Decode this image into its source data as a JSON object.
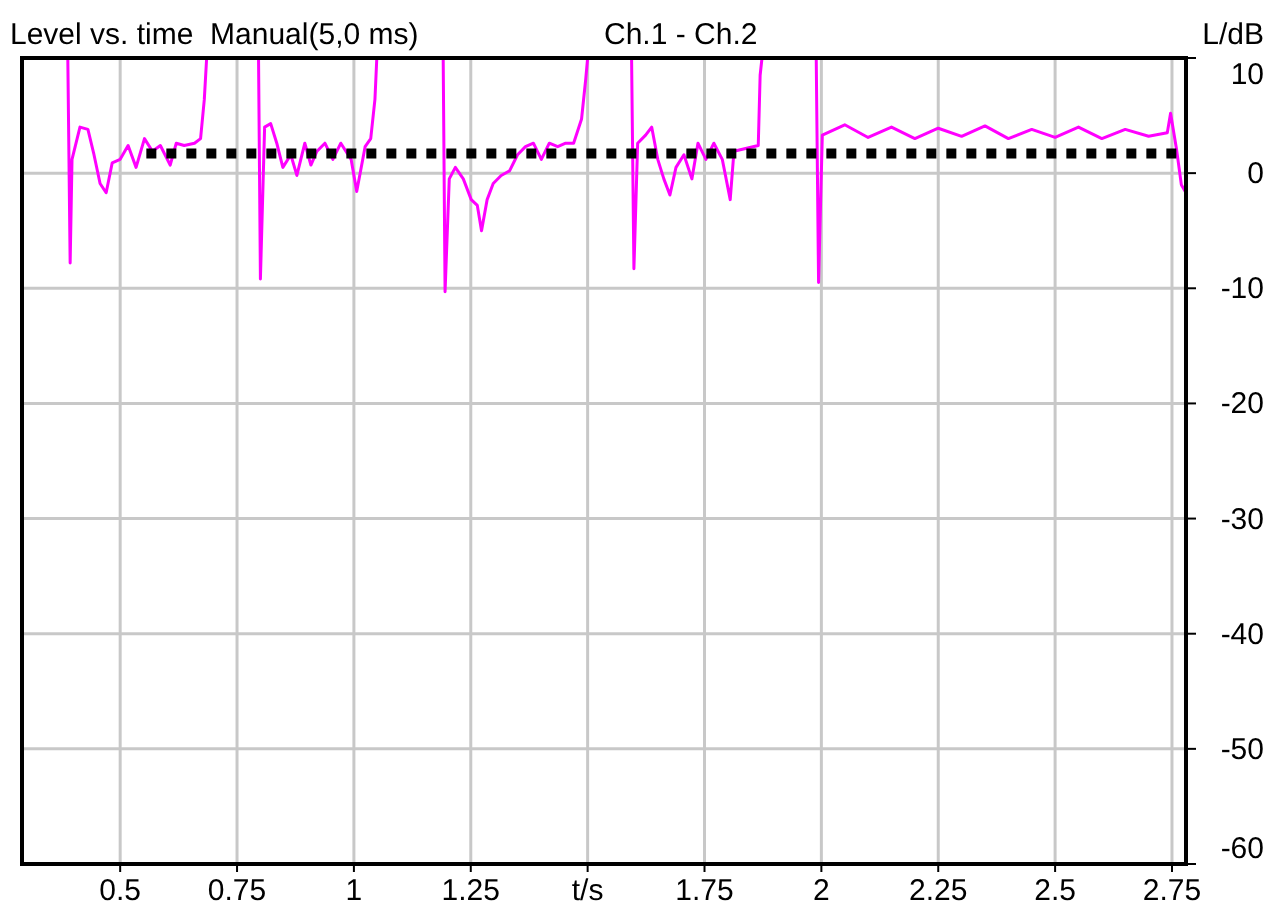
{
  "chart_data": {
    "type": "line",
    "title": "Level vs. time  Manual(5,0 ms)",
    "subtitle": "Ch.1 - Ch.2",
    "ylabel": "L/dB",
    "xlim": [
      0.29,
      2.78
    ],
    "ylim": [
      -60,
      10
    ],
    "xticks": [
      0.5,
      0.75,
      1,
      1.25,
      {
        "value": 1.5,
        "label": "t/s"
      },
      1.75,
      2,
      2.25,
      2.5,
      2.75
    ],
    "yticks": [
      10,
      0,
      -10,
      -20,
      -30,
      -40,
      -50,
      -60
    ],
    "grid": true,
    "marker": "none",
    "series": [
      {
        "color": "#ff00ff",
        "line_style": "solid",
        "x": [
          0.388,
          0.393,
          0.397,
          0.414,
          0.431,
          0.444,
          0.457,
          0.47,
          0.483,
          0.5,
          0.517,
          0.534,
          0.552,
          0.569,
          0.586,
          0.607,
          0.62,
          0.637,
          0.659,
          0.672,
          0.68,
          0.685,
          0.74,
          0.796,
          0.8,
          0.809,
          0.822,
          0.835,
          0.848,
          0.865,
          0.878,
          0.895,
          0.908,
          0.921,
          0.938,
          0.955,
          0.972,
          0.994,
          1.006,
          1.024,
          1.036,
          1.045,
          1.049,
          1.12,
          1.191,
          1.195,
          1.204,
          1.217,
          1.234,
          1.251,
          1.264,
          1.273,
          1.285,
          1.298,
          1.315,
          1.333,
          1.35,
          1.367,
          1.384,
          1.401,
          1.418,
          1.436,
          1.453,
          1.47,
          1.487,
          1.496,
          1.5,
          1.55,
          1.594,
          1.599,
          1.607,
          1.624,
          1.637,
          1.65,
          1.663,
          1.676,
          1.689,
          1.706,
          1.723,
          1.736,
          1.753,
          1.77,
          1.788,
          1.805,
          1.813,
          1.865,
          1.869,
          1.873,
          1.93,
          1.989,
          1.994,
          2.002,
          2.05,
          2.1,
          2.15,
          2.2,
          2.25,
          2.3,
          2.35,
          2.4,
          2.45,
          2.5,
          2.55,
          2.6,
          2.65,
          2.7,
          2.74,
          2.747,
          2.76,
          2.77,
          2.78
        ],
        "values": [
          10,
          -7.8,
          1.2,
          4,
          3.8,
          1.6,
          -0.9,
          -1.7,
          0.9,
          1.2,
          2.4,
          0.5,
          3,
          1.9,
          2.4,
          0.7,
          2.6,
          2.4,
          2.6,
          3,
          6.4,
          10,
          null,
          10,
          -9.2,
          4,
          4.3,
          2.6,
          0.5,
          1.6,
          -0.2,
          2.6,
          0.7,
          1.9,
          2.6,
          1.2,
          2.6,
          1.2,
          -1.6,
          2.3,
          3,
          6.4,
          10,
          null,
          10,
          -10.3,
          -0.5,
          0.5,
          -0.5,
          -2.3,
          -2.8,
          -5,
          -2.3,
          -0.9,
          -0.2,
          0.2,
          1.6,
          2.3,
          2.6,
          1.2,
          2.6,
          2.3,
          2.6,
          2.6,
          4.7,
          8.2,
          10,
          null,
          10,
          -8.3,
          2.6,
          3.3,
          4,
          1.2,
          -0.5,
          -1.9,
          0.5,
          1.6,
          -0.5,
          2.6,
          1.2,
          2.6,
          1.2,
          -2.3,
          1.9,
          2.4,
          8.5,
          10,
          null,
          10,
          -9.5,
          3.3,
          4.2,
          3.1,
          4,
          3,
          3.9,
          3.2,
          4.1,
          3,
          3.8,
          3.1,
          4,
          3,
          3.8,
          3.2,
          3.5,
          5.2,
          2,
          -1,
          -1.7
        ]
      },
      {
        "color": "#000000",
        "line_style": "dotted",
        "x": [
          0.556,
          2.78
        ],
        "values": [
          1.7,
          1.7
        ]
      }
    ]
  }
}
